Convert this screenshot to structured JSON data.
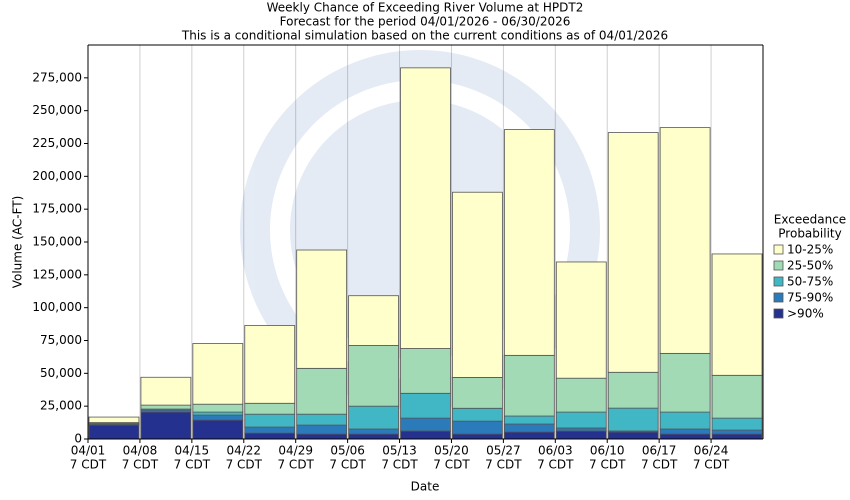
{
  "chart_data": {
    "type": "stacked_bar",
    "title": "Weekly Chance of Exceeding River Volume at HPDT2",
    "subtitle": [
      "Forecast for the period 04/01/2026 - 06/30/2026",
      "This is a conditional simulation based on the current conditions as of 04/01/2026"
    ],
    "x_label": "Date",
    "y_label": "Volume (AC-FT)",
    "categories": [
      "04/01",
      "04/08",
      "04/15",
      "04/22",
      "04/29",
      "05/06",
      "05/13",
      "05/20",
      "05/27",
      "06/03",
      "06/10",
      "06/17",
      "06/24"
    ],
    "category_sublabel": "7 CDT",
    "legend_title": [
      "Exceedance",
      "Probability"
    ],
    "legend_position": "right",
    "ylim": [
      0,
      300000
    ],
    "yticks": [
      0,
      {
        "value": 25000,
        "label": "25,000"
      },
      {
        "value": 50000,
        "label": "50,000"
      },
      {
        "value": 75000,
        "label": "75,000"
      },
      {
        "value": 100000,
        "label": "100,000"
      },
      {
        "value": 125000,
        "label": "125,000"
      },
      {
        "value": 150000,
        "label": "150,000"
      },
      {
        "value": 175000,
        "label": "175,000"
      },
      {
        "value": 200000,
        "label": "200,000"
      },
      {
        "value": 225000,
        "label": "225,000"
      },
      {
        "value": 250000,
        "label": "250,000"
      },
      {
        "value": 275000,
        "label": "275,000"
      }
    ],
    "series": [
      {
        "name": ">90%",
        "color": "#25318f",
        "values": [
          10600,
          20500,
          14400,
          4500,
          3800,
          3800,
          6100,
          3800,
          5300,
          6100,
          5300,
          3800,
          3800
        ]
      },
      {
        "name": "75-90%",
        "color": "#2b7bba",
        "values": [
          700,
          1500,
          3800,
          4600,
          6800,
          3800,
          9800,
          9800,
          6100,
          2300,
          800,
          3800,
          3000
        ]
      },
      {
        "name": "50-75%",
        "color": "#41b6c4",
        "values": [
          500,
          800,
          2300,
          9800,
          8300,
          17400,
          18900,
          9800,
          6100,
          12100,
          17400,
          12900,
          9100
        ]
      },
      {
        "name": "25-50%",
        "color": "#a1dab4",
        "values": [
          700,
          3000,
          6000,
          8300,
          34900,
          46200,
          34100,
          23500,
          46200,
          25800,
          27300,
          44700,
          32600
        ]
      },
      {
        "name": "10-25%",
        "color": "#ffffcc",
        "values": [
          4200,
          21200,
          46200,
          59200,
          90100,
          37900,
          213700,
          141000,
          171900,
          88500,
          182500,
          171900,
          92400
        ]
      }
    ]
  }
}
